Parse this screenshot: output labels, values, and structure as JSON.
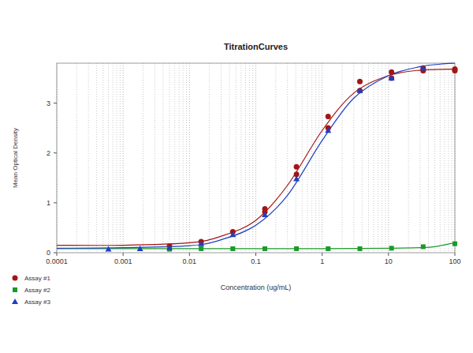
{
  "chart_data": {
    "type": "scatter",
    "title": "TitrationCurves",
    "x_label": "Concentration (ug/mL)",
    "y_label": "Mean Optical Density",
    "log": "x",
    "grid": true,
    "legend": "bottom-left",
    "xlim": [
      0.0001,
      100
    ],
    "xticks": [
      0.0001,
      0.001,
      0.01,
      0.1,
      1,
      10,
      100
    ],
    "ylim": [
      0,
      3.8
    ],
    "yticks": [
      0,
      1,
      2,
      3
    ],
    "series": [
      {
        "name": "Assay #1",
        "color": "#a31515",
        "marker": "circle",
        "x": [
          0.005,
          0.015,
          0.045,
          0.137,
          0.137,
          0.41,
          0.41,
          1.23,
          1.23,
          3.7,
          3.7,
          11.1,
          11.1,
          33.3,
          33.3,
          100,
          100
        ],
        "values": [
          0.13,
          0.22,
          0.42,
          0.88,
          0.82,
          1.72,
          1.57,
          2.73,
          2.5,
          3.43,
          3.25,
          3.62,
          3.5,
          3.7,
          3.65,
          3.68,
          3.65
        ],
        "fit": {
          "x": [
            0.0001,
            0.001,
            0.01,
            0.03,
            0.1,
            0.3,
            1,
            3,
            10,
            30,
            100
          ],
          "values": [
            0.15,
            0.15,
            0.2,
            0.33,
            0.65,
            1.35,
            2.45,
            3.2,
            3.55,
            3.66,
            3.68
          ]
        }
      },
      {
        "name": "Assay #2",
        "color": "#1a9a2a",
        "marker": "square",
        "x": [
          0.005,
          0.015,
          0.045,
          0.137,
          0.41,
          1.23,
          3.7,
          11.1,
          33.3,
          100
        ],
        "values": [
          0.07,
          0.08,
          0.08,
          0.08,
          0.08,
          0.08,
          0.08,
          0.09,
          0.12,
          0.18
        ],
        "fit": {
          "x": [
            0.0001,
            0.01,
            1,
            10,
            30,
            50,
            100
          ],
          "values": [
            0.08,
            0.08,
            0.08,
            0.09,
            0.1,
            0.12,
            0.2
          ]
        }
      },
      {
        "name": "Assay #3",
        "color": "#1f3fbf",
        "marker": "triangle",
        "x": [
          0.0006,
          0.0018,
          0.005,
          0.015,
          0.045,
          0.137,
          0.41,
          1.23,
          3.7,
          11.1,
          33.3
        ],
        "values": [
          0.07,
          0.08,
          0.1,
          0.18,
          0.36,
          0.76,
          1.48,
          2.45,
          3.25,
          3.5,
          3.7
        ],
        "fit": {
          "x": [
            0.0001,
            0.001,
            0.01,
            0.03,
            0.1,
            0.3,
            1,
            3,
            10,
            30,
            60,
            100
          ],
          "values": [
            0.09,
            0.1,
            0.14,
            0.26,
            0.55,
            1.15,
            2.25,
            3.1,
            3.55,
            3.73,
            3.78,
            3.8
          ]
        }
      }
    ]
  }
}
